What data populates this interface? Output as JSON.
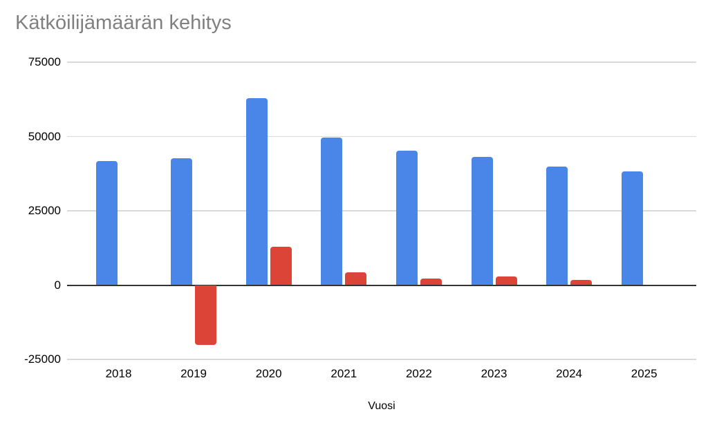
{
  "title": "Kätköilijämäärän kehitys",
  "chart_data": {
    "type": "bar",
    "title": "Kätköilijämäärän kehitys",
    "xlabel": "Vuosi",
    "ylabel": "",
    "categories": [
      "2018",
      "2019",
      "2020",
      "2021",
      "2022",
      "2023",
      "2024",
      "2025"
    ],
    "series": [
      {
        "color": "#4a86e8",
        "values": [
          41700,
          42700,
          63000,
          49700,
          45200,
          43200,
          39900,
          38300
        ]
      },
      {
        "color": "#db4437",
        "values": [
          0,
          -20000,
          13000,
          4400,
          2200,
          3000,
          1800,
          0
        ]
      }
    ],
    "ylim": [
      -25000,
      75000
    ],
    "yticks": [
      75000,
      50000,
      25000,
      0,
      -25000
    ],
    "ytick_labels": [
      "75000",
      "50000",
      "25000",
      "0",
      "-25000"
    ],
    "grid": "horizontal",
    "legend_position": "none",
    "colors": {
      "series_1": "#4a86e8",
      "series_2": "#db4437",
      "gridline": "#d9d9d9",
      "zero_axis": "#333333",
      "title_text": "#808080",
      "tick_text": "#000000",
      "background": "#ffffff"
    }
  }
}
